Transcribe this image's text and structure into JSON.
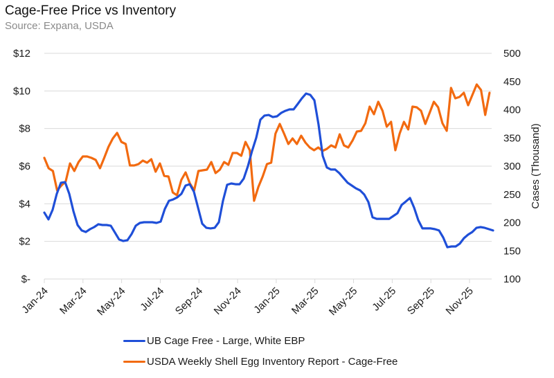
{
  "header": {
    "title": "Cage-Free Price vs Inventory",
    "subtitle": "Source: Expana, USDA"
  },
  "chart_data": {
    "type": "line",
    "title": "Cage-Free Price vs Inventory",
    "subtitle": "Source: Expana, USDA",
    "xlabel": "",
    "ylabel_left": "",
    "ylabel_right": "Cases (Thousand)",
    "x_tick_labels": [
      "Jan-24",
      "Mar-24",
      "May-24",
      "Jul-24",
      "Sep-24",
      "Nov-24",
      "Jan-25",
      "Mar-25",
      "May-25",
      "Jul-25",
      "Sep-25",
      "Nov-25"
    ],
    "x_unit": "months since Jan-24",
    "xlim": [
      0,
      23.2
    ],
    "y_left": {
      "ticks": [
        0,
        2,
        4,
        6,
        8,
        10,
        12
      ],
      "tick_labels": [
        "$-",
        "$2",
        "$4",
        "$6",
        "$8",
        "$10",
        "$12"
      ],
      "ylim": [
        0,
        12
      ]
    },
    "y_right": {
      "ticks": [
        100,
        150,
        200,
        250,
        300,
        350,
        400,
        450,
        500
      ],
      "tick_labels": [
        "100",
        "150",
        "200",
        "250",
        "300",
        "350",
        "400",
        "450",
        "500"
      ],
      "ylim": [
        100,
        500
      ]
    },
    "grid": true,
    "legend_position": "bottom",
    "series": [
      {
        "name": "UB Cage Free - Large, White EBP",
        "axis": "left",
        "color": "#1f4fd8",
        "x_start": 0,
        "x_step": 0.215,
        "values": [
          3.53,
          3.17,
          3.68,
          4.53,
          5.12,
          5.15,
          4.53,
          3.61,
          2.87,
          2.58,
          2.5,
          2.65,
          2.76,
          2.91,
          2.87,
          2.87,
          2.83,
          2.47,
          2.1,
          2.02,
          2.06,
          2.39,
          2.83,
          2.98,
          3.02,
          3.02,
          3.02,
          2.98,
          3.05,
          3.72,
          4.16,
          4.23,
          4.34,
          4.53,
          4.97,
          5.04,
          4.64,
          3.79,
          2.94,
          2.72,
          2.69,
          2.72,
          3.02,
          4.16,
          5.01,
          5.08,
          5.04,
          5.04,
          5.34,
          6.0,
          6.81,
          7.51,
          8.47,
          8.69,
          8.72,
          8.61,
          8.65,
          8.83,
          8.94,
          9.02,
          9.02,
          9.31,
          9.61,
          9.86,
          9.79,
          9.5,
          8.21,
          6.55,
          5.93,
          5.82,
          5.82,
          5.63,
          5.37,
          5.12,
          4.97,
          4.82,
          4.71,
          4.49,
          4.09,
          3.28,
          3.2,
          3.2,
          3.2,
          3.2,
          3.35,
          3.5,
          3.94,
          4.12,
          4.31,
          3.79,
          3.13,
          2.69,
          2.69,
          2.69,
          2.65,
          2.58,
          2.21,
          1.69,
          1.73,
          1.73,
          1.88,
          2.17,
          2.36,
          2.5,
          2.72,
          2.76,
          2.72,
          2.65,
          2.58
        ]
      },
      {
        "name": "USDA Weekly Shell Egg Inventory Report - Cage-Free",
        "axis": "right",
        "color": "#f26a10",
        "x_start": 0,
        "x_step": 0.2215,
        "values": [
          314.7,
          296.3,
          291.4,
          257.1,
          265.6,
          273.0,
          304.9,
          291.4,
          307.4,
          317.2,
          317.2,
          314.7,
          311.0,
          296.3,
          314.7,
          334.4,
          349.1,
          358.9,
          342.9,
          339.3,
          301.2,
          301.2,
          303.7,
          309.8,
          306.1,
          312.3,
          290.2,
          304.9,
          282.8,
          281.6,
          253.4,
          248.5,
          275.5,
          289.0,
          269.3,
          257.1,
          291.4,
          292.6,
          293.9,
          307.4,
          287.7,
          293.9,
          307.4,
          302.5,
          323.3,
          323.3,
          318.4,
          342.9,
          328.2,
          238.7,
          263.2,
          281.6,
          303.7,
          306.1,
          357.7,
          374.8,
          357.7,
          339.3,
          349.1,
          339.3,
          354.0,
          341.7,
          333.1,
          328.2,
          333.1,
          327.0,
          330.7,
          336.8,
          333.1,
          356.4,
          336.8,
          333.1,
          345.4,
          361.3,
          362.6,
          376.1,
          405.5,
          392.0,
          414.1,
          398.2,
          369.9,
          378.5,
          328.2,
          357.7,
          378.5,
          365.0,
          405.5,
          404.3,
          398.2,
          374.8,
          394.5,
          414.1,
          404.3,
          376.1,
          362.6,
          438.7,
          420.2,
          422.7,
          430.1,
          408.0,
          426.4,
          444.8,
          435.0,
          390.8,
          430.1
        ]
      }
    ]
  },
  "legend": [
    {
      "label": "UB Cage Free - Large, White EBP",
      "color": "#1f4fd8"
    },
    {
      "label": "USDA Weekly Shell Egg Inventory Report - Cage-Free",
      "color": "#f26a10"
    }
  ]
}
